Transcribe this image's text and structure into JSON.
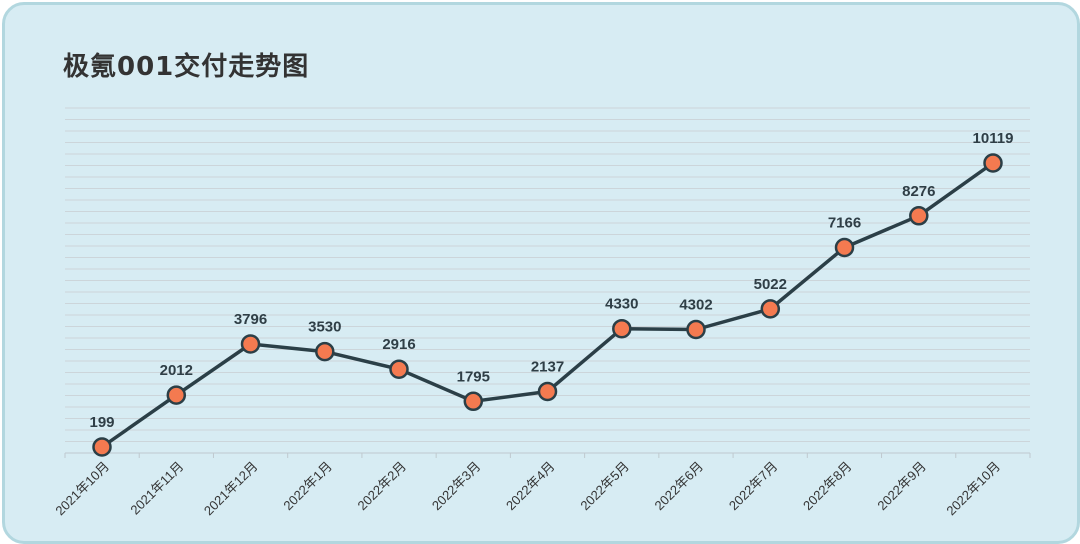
{
  "chart_data": {
    "type": "line",
    "title": "极氪001交付走势图",
    "categories": [
      "2021年10月",
      "2021年11月",
      "2021年12月",
      "2022年1月",
      "2022年2月",
      "2022年3月",
      "2022年4月",
      "2022年5月",
      "2022年6月",
      "2022年7月",
      "2022年8月",
      "2022年9月",
      "2022年10月"
    ],
    "series": [
      {
        "values": [
          199,
          2012,
          3796,
          3530,
          2916,
          1795,
          2137,
          4330,
          4302,
          5022,
          7166,
          8276,
          10119
        ]
      }
    ],
    "ylim": [
      0,
      11000
    ],
    "grid": true,
    "legend": "none",
    "colors": {
      "line": "#2b3f47",
      "marker": "#f47a50",
      "grid": "#ccd5da",
      "background": "#d7ecf3",
      "border": "#b2d7df"
    }
  }
}
